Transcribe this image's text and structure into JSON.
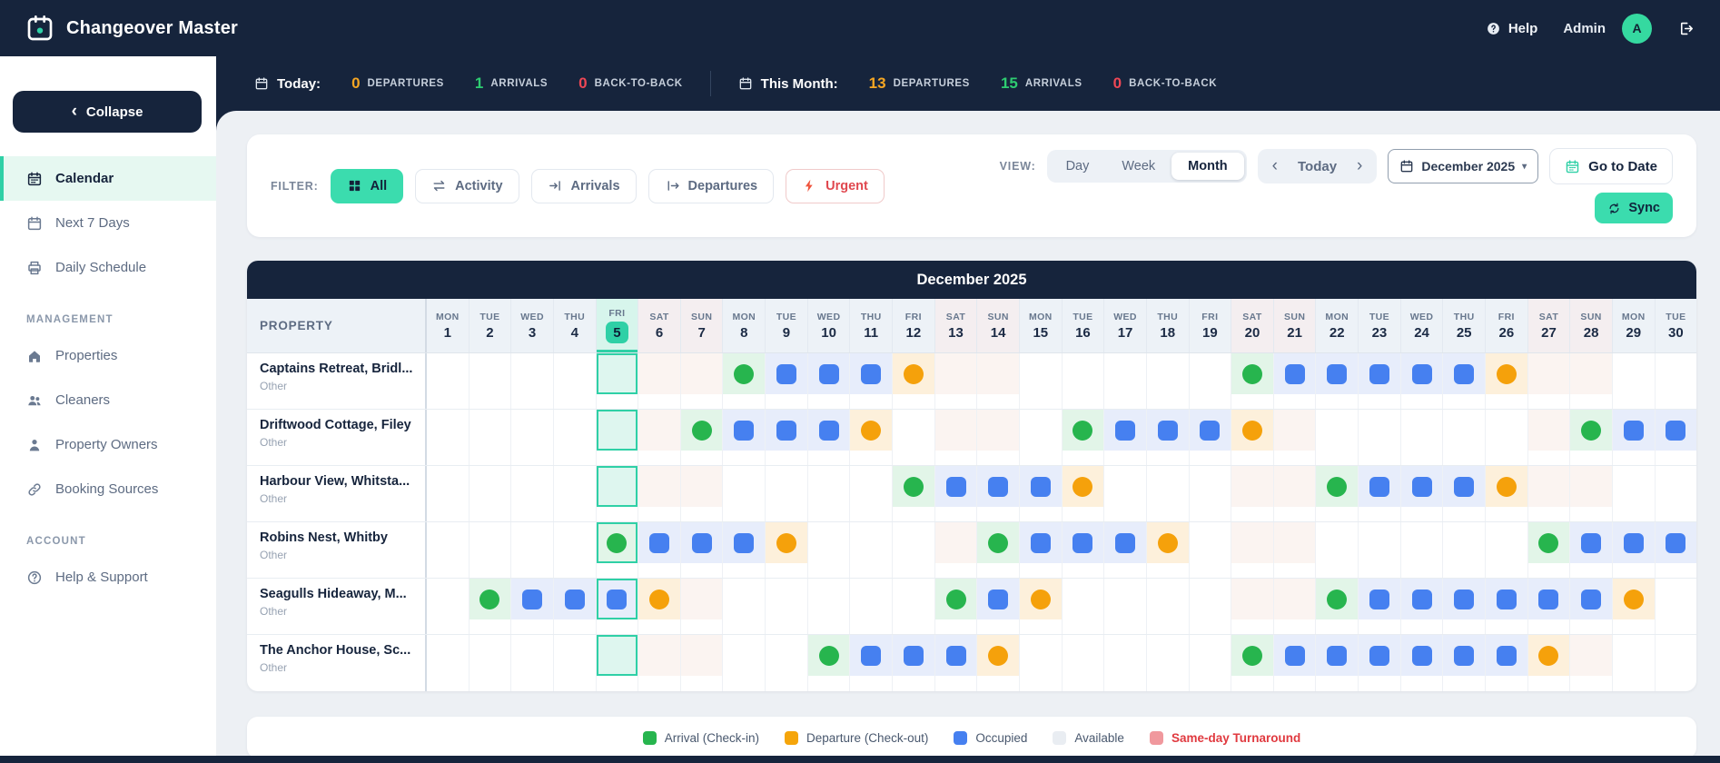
{
  "app": {
    "title": "Changeover Master"
  },
  "header": {
    "help_label": "Help",
    "user_name": "Admin",
    "avatar_initial": "A"
  },
  "statsbar": {
    "today_label": "Today:",
    "month_label": "This Month:",
    "today": [
      {
        "value": "0",
        "label": "DEPARTURES",
        "color": "#f5a623"
      },
      {
        "value": "1",
        "label": "ARRIVALS",
        "color": "#2ecc71"
      },
      {
        "value": "0",
        "label": "BACK-TO-BACK",
        "color": "#ef4755"
      }
    ],
    "month": [
      {
        "value": "13",
        "label": "DEPARTURES",
        "color": "#f5a623"
      },
      {
        "value": "15",
        "label": "ARRIVALS",
        "color": "#2ecc71"
      },
      {
        "value": "0",
        "label": "BACK-TO-BACK",
        "color": "#ef4755"
      }
    ]
  },
  "sidebar": {
    "collapse_label": "Collapse",
    "main_items": [
      {
        "label": "Calendar",
        "icon": "calendar",
        "active": true
      },
      {
        "label": "Next 7 Days",
        "icon": "calendar7",
        "active": false
      },
      {
        "label": "Daily Schedule",
        "icon": "printer",
        "active": false
      }
    ],
    "management_label": "MANAGEMENT",
    "management_items": [
      {
        "label": "Properties",
        "icon": "home"
      },
      {
        "label": "Cleaners",
        "icon": "users"
      },
      {
        "label": "Property Owners",
        "icon": "user"
      },
      {
        "label": "Booking Sources",
        "icon": "link"
      }
    ],
    "account_label": "ACCOUNT",
    "account_items": [
      {
        "label": "Help & Support",
        "icon": "help"
      }
    ]
  },
  "toolbar": {
    "filter_label": "FILTER:",
    "filters": [
      {
        "label": "All",
        "icon": "grid",
        "active": true,
        "urgent": false
      },
      {
        "label": "Activity",
        "icon": "activity",
        "active": false,
        "urgent": false
      },
      {
        "label": "Arrivals",
        "icon": "arrival",
        "active": false,
        "urgent": false
      },
      {
        "label": "Departures",
        "icon": "departure",
        "active": false,
        "urgent": false
      },
      {
        "label": "Urgent",
        "icon": "bolt",
        "active": false,
        "urgent": true
      }
    ],
    "view_label": "VIEW:",
    "views": [
      {
        "label": "Day",
        "active": false
      },
      {
        "label": "Week",
        "active": false
      },
      {
        "label": "Month",
        "active": true
      }
    ],
    "today_label": "Today",
    "month_selector": "December 2025",
    "goto_date_label": "Go to Date",
    "sync_label": "Sync"
  },
  "calendar": {
    "title": "December 2025",
    "property_header": "PROPERTY",
    "today_day": 5,
    "weekend_days": [
      6,
      7,
      13,
      14,
      20,
      21,
      27,
      28
    ],
    "days": [
      {
        "dow": "MON",
        "num": 1
      },
      {
        "dow": "TUE",
        "num": 2
      },
      {
        "dow": "WED",
        "num": 3
      },
      {
        "dow": "THU",
        "num": 4
      },
      {
        "dow": "FRI",
        "num": 5
      },
      {
        "dow": "SAT",
        "num": 6
      },
      {
        "dow": "SUN",
        "num": 7
      },
      {
        "dow": "MON",
        "num": 8
      },
      {
        "dow": "TUE",
        "num": 9
      },
      {
        "dow": "WED",
        "num": 10
      },
      {
        "dow": "THU",
        "num": 11
      },
      {
        "dow": "FRI",
        "num": 12
      },
      {
        "dow": "SAT",
        "num": 13
      },
      {
        "dow": "SUN",
        "num": 14
      },
      {
        "dow": "MON",
        "num": 15
      },
      {
        "dow": "TUE",
        "num": 16
      },
      {
        "dow": "WED",
        "num": 17
      },
      {
        "dow": "THU",
        "num": 18
      },
      {
        "dow": "FRI",
        "num": 19
      },
      {
        "dow": "SAT",
        "num": 20
      },
      {
        "dow": "SUN",
        "num": 21
      },
      {
        "dow": "MON",
        "num": 22
      },
      {
        "dow": "TUE",
        "num": 23
      },
      {
        "dow": "WED",
        "num": 24
      },
      {
        "dow": "THU",
        "num": 25
      },
      {
        "dow": "FRI",
        "num": 26
      },
      {
        "dow": "SAT",
        "num": 27
      },
      {
        "dow": "SUN",
        "num": 28
      },
      {
        "dow": "MON",
        "num": 29
      },
      {
        "dow": "TUE",
        "num": 30
      }
    ],
    "properties": [
      {
        "name": "Captains Retreat, Bridl...",
        "type": "Other",
        "bookings": [
          {
            "checkin": 8,
            "checkout": 12
          },
          {
            "checkin": 20,
            "checkout": 26
          }
        ]
      },
      {
        "name": "Driftwood Cottage, Filey",
        "type": "Other",
        "bookings": [
          {
            "checkin": 7,
            "checkout": 11
          },
          {
            "checkin": 16,
            "checkout": 20
          },
          {
            "checkin": 28,
            "checkout": null
          }
        ]
      },
      {
        "name": "Harbour View, Whitsta...",
        "type": "Other",
        "bookings": [
          {
            "checkin": 12,
            "checkout": 16
          },
          {
            "checkin": 22,
            "checkout": 26
          }
        ]
      },
      {
        "name": "Robins Nest, Whitby",
        "type": "Other",
        "bookings": [
          {
            "checkin": 5,
            "checkout": 9
          },
          {
            "checkin": 14,
            "checkout": 18
          },
          {
            "checkin": 27,
            "checkout": null
          }
        ]
      },
      {
        "name": "Seagulls Hideaway, M...",
        "type": "Other",
        "bookings": [
          {
            "checkin": 2,
            "checkout": 6
          },
          {
            "checkin": 13,
            "checkout": 15
          },
          {
            "checkin": 22,
            "checkout": 29
          }
        ]
      },
      {
        "name": "The Anchor House, Sc...",
        "type": "Other",
        "bookings": [
          {
            "checkin": 10,
            "checkout": 14
          },
          {
            "checkin": 20,
            "checkout": 27
          }
        ]
      }
    ]
  },
  "legend": [
    {
      "label": "Arrival (Check-in)",
      "color": "#27b54e",
      "text_color": ""
    },
    {
      "label": "Departure (Check-out)",
      "color": "#f5a50b",
      "text_color": ""
    },
    {
      "label": "Occupied",
      "color": "#4680f0",
      "text_color": ""
    },
    {
      "label": "Available",
      "color": "#e9edf2",
      "text_color": ""
    },
    {
      "label": "Same-day Turnaround",
      "color": "#f0989d",
      "text_color": "#e0393f"
    }
  ],
  "colors": {
    "navy": "#16243c",
    "accent_teal": "#3bdcae",
    "today_teal": "#2fd0a6",
    "arrival_green": "#27b54e",
    "occupied_blue": "#4680f0",
    "departure_orange": "#f5a10b",
    "urgent_red": "#e0484f"
  }
}
